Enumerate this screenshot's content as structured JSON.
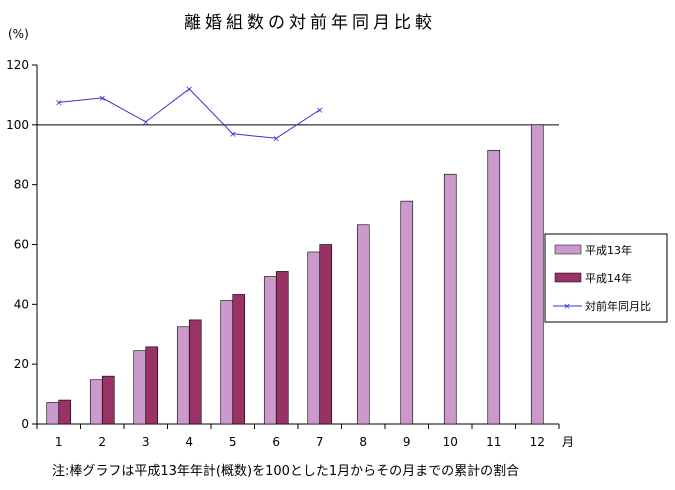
{
  "chart_data": {
    "type": "bar",
    "title": "離婚組数の対前年同月比較",
    "ylabel": "(%)",
    "xlabel": "月",
    "ylim": [
      0,
      120
    ],
    "yticks": [
      0,
      20,
      40,
      60,
      80,
      100,
      120
    ],
    "categories": [
      "1",
      "2",
      "3",
      "4",
      "5",
      "6",
      "7",
      "8",
      "9",
      "10",
      "11",
      "12"
    ],
    "series": [
      {
        "name": "平成13年",
        "kind": "bar",
        "color": "#cc99cc",
        "values": [
          7.2,
          14.8,
          24.5,
          32.5,
          41.3,
          49.3,
          57.5,
          66.6,
          74.5,
          83.5,
          91.5,
          100
        ]
      },
      {
        "name": "平成14年",
        "kind": "bar",
        "color": "#993366",
        "values": [
          8.0,
          16.0,
          25.8,
          34.8,
          43.3,
          51.0,
          60.0,
          null,
          null,
          null,
          null,
          null
        ]
      },
      {
        "name": "対前年同月比",
        "kind": "line",
        "color": "#3333cc",
        "values": [
          107.5,
          109,
          101,
          112,
          97,
          95.5,
          105,
          null,
          null,
          null,
          null,
          null
        ]
      }
    ],
    "reference_line": 100,
    "legend_position": "right",
    "grid": false
  },
  "footnote": "注:棒グラフは平成13年年計(概数)を100とした1月からその月までの累計の割合"
}
